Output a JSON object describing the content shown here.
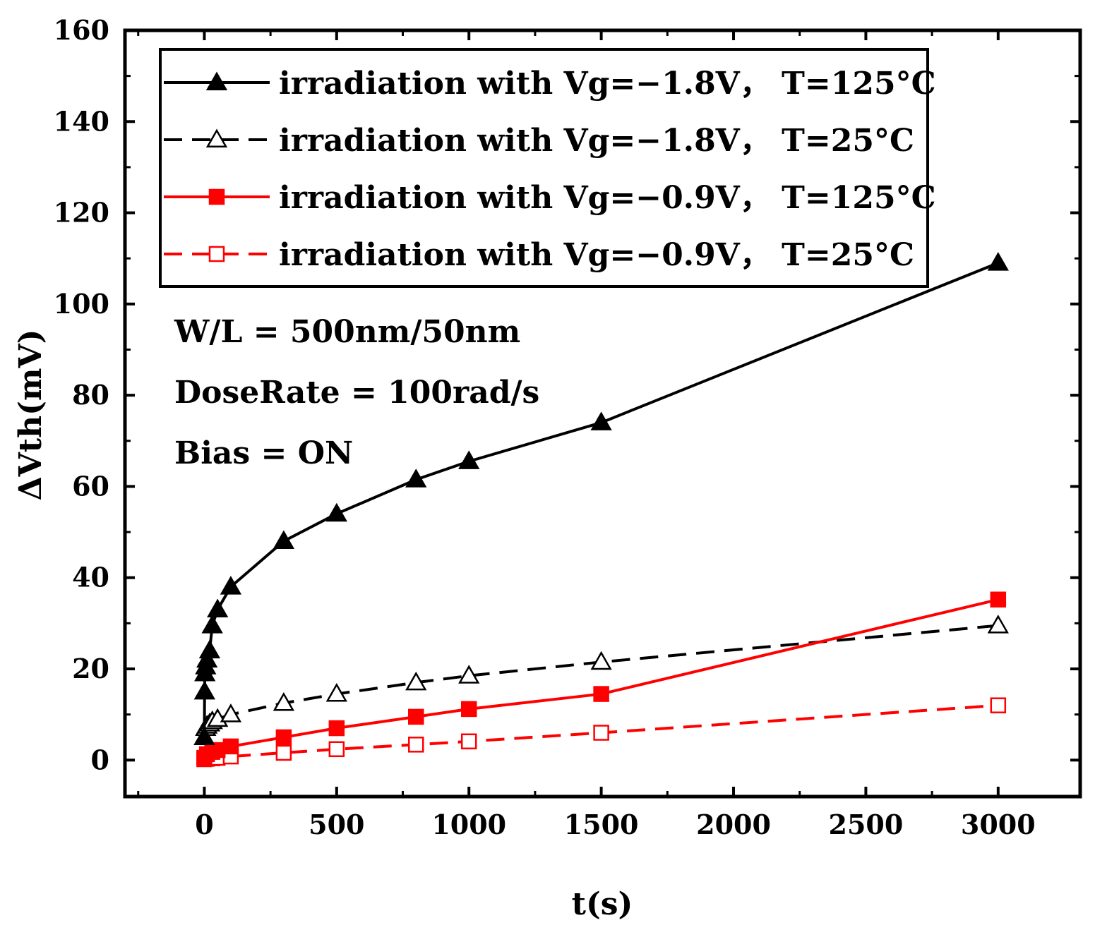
{
  "chart_data": {
    "type": "line",
    "xlabel": "t(s)",
    "ylabel": "ΔVth(mV)",
    "xlim": [
      -300,
      3310
    ],
    "ylim": [
      -8,
      160
    ],
    "xticks": [
      0,
      500,
      1000,
      1500,
      2000,
      2500,
      3000
    ],
    "yticks": [
      0,
      20,
      40,
      60,
      80,
      100,
      120,
      140,
      160
    ],
    "grid": false,
    "legend_position": "top",
    "annotations": [
      "W/L = 500nm/50nm",
      "DoseRate = 100rad/s",
      "Bias = ON"
    ],
    "series": [
      {
        "name": "irradiation with Vg=−1.8V， T=125°C",
        "color": "#000000",
        "dash": "solid",
        "marker": "triangle",
        "filled": true,
        "x": [
          0,
          1,
          2,
          5,
          10,
          20,
          30,
          50,
          100,
          300,
          500,
          800,
          1000,
          1500,
          3000
        ],
        "y": [
          5,
          15,
          19,
          20.5,
          22,
          24,
          29.5,
          33,
          38,
          48,
          54,
          61.5,
          65.5,
          74,
          109
        ]
      },
      {
        "name": "irradiation with Vg=−1.8V， T=25°C",
        "color": "#000000",
        "dash": "dashed",
        "marker": "triangle",
        "filled": false,
        "x": [
          0,
          5,
          10,
          20,
          30,
          50,
          100,
          300,
          500,
          800,
          1000,
          1500,
          3000
        ],
        "y": [
          5,
          7,
          7.5,
          8,
          8.5,
          9,
          10,
          12.5,
          14.5,
          17,
          18.5,
          21.5,
          29.5
        ]
      },
      {
        "name": "irradiation with Vg=−0.9V， T=125°C",
        "color": "#ff0000",
        "dash": "solid",
        "marker": "square",
        "filled": true,
        "x": [
          0,
          10,
          30,
          50,
          100,
          300,
          500,
          800,
          1000,
          1500,
          3000
        ],
        "y": [
          0.5,
          1.3,
          1.8,
          2.2,
          3,
          5,
          7,
          9.5,
          11.2,
          14.5,
          35.2
        ]
      },
      {
        "name": "irradiation with Vg=−0.9V， T=25°C",
        "color": "#ff0000",
        "dash": "dashed",
        "marker": "square",
        "filled": false,
        "x": [
          0,
          10,
          30,
          50,
          100,
          300,
          500,
          800,
          1000,
          1500,
          3000
        ],
        "y": [
          0.2,
          0.3,
          0.4,
          0.5,
          0.8,
          1.6,
          2.4,
          3.4,
          4.1,
          6,
          12
        ]
      }
    ]
  }
}
